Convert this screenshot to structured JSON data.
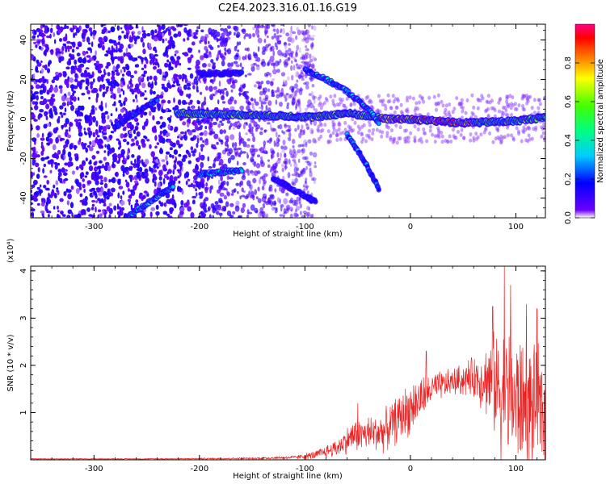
{
  "title": "C2E4.2023.316.01.16.G19",
  "chart_data": [
    {
      "type": "heatmap",
      "xlabel": "Height of straight line (km)",
      "ylabel": "Frequency (Hz)",
      "xlim": [
        -360,
        128
      ],
      "ylim": [
        -50,
        48
      ],
      "xticks": [
        -300,
        -200,
        -100,
        0,
        100
      ],
      "xtick_labels": [
        "-300",
        "-200",
        "-100",
        "0",
        "100"
      ],
      "yticks": [
        -40,
        -20,
        0,
        20,
        40
      ],
      "ytick_labels": [
        "-40",
        "-20",
        "0",
        "20",
        "40"
      ],
      "colorbar": {
        "label": "Normalized spectral amplitude",
        "range": [
          0,
          1
        ],
        "ticks": [
          0.0,
          0.2,
          0.4,
          0.6,
          0.8
        ],
        "tick_labels": [
          "0.0",
          "0.2",
          "0.4",
          "0.6",
          "0.8"
        ],
        "colors": [
          "#ffffff",
          "#6a00ff",
          "#0000ff",
          "#00ffff",
          "#00ff00",
          "#ffff00",
          "#ff8000",
          "#ff0000",
          "#ff0080"
        ]
      },
      "features": [
        {
          "description_of": "main ridge",
          "x": [
            -222,
            -150,
            -90,
            -60,
            -20,
            0,
            50,
            100,
            128
          ],
          "y": [
            3,
            2,
            1,
            3,
            0,
            0,
            -2,
            -1,
            1
          ],
          "amplitude": 0.55
        },
        {
          "description_of": "branch",
          "x": [
            -100,
            -80,
            -60,
            -40,
            -30
          ],
          "y": [
            25,
            20,
            14,
            5,
            -2
          ],
          "amplitude": 0.35
        },
        {
          "description_of": "branch",
          "x": [
            -60,
            -45,
            -30
          ],
          "y": [
            -8,
            -20,
            -35
          ],
          "amplitude": 0.3
        },
        {
          "description_of": "branch",
          "x": [
            -200,
            -160
          ],
          "y": [
            -28,
            -26
          ],
          "amplitude": 0.35
        },
        {
          "description_of": "branch",
          "x": [
            -200,
            -160
          ],
          "y": [
            23,
            23
          ],
          "amplitude": 0.2
        },
        {
          "description_of": "branch",
          "x": [
            -130,
            -90
          ],
          "y": [
            -30,
            -42
          ],
          "amplitude": 0.2
        },
        {
          "description_of": "branch",
          "x": [
            -280,
            -240
          ],
          "y": [
            -4,
            10
          ],
          "amplitude": 0.25
        },
        {
          "description_of": "branch",
          "x": [
            -270,
            -225
          ],
          "y": [
            -50,
            -34
          ],
          "amplitude": 0.35
        }
      ],
      "noise_region_x": [
        -360,
        -90
      ]
    },
    {
      "type": "line",
      "xlabel": "Height of straight line (km)",
      "ylabel": "SNR (10 * v/v)",
      "y_multiplier": "(x10⁴)",
      "xlim": [
        -360,
        128
      ],
      "ylim": [
        0,
        4.1
      ],
      "xticks": [
        -300,
        -200,
        -100,
        0,
        100
      ],
      "xtick_labels": [
        "-300",
        "-200",
        "-100",
        "0",
        "100"
      ],
      "yticks": [
        1,
        2,
        3,
        4
      ],
      "ytick_labels": [
        "1",
        "2",
        "3",
        "4"
      ],
      "color": "#ee2222",
      "envelope": {
        "x": [
          -360,
          -250,
          -150,
          -110,
          -90,
          -70,
          -55,
          -40,
          -25,
          -10,
          0,
          10,
          20,
          40,
          60,
          75,
          85,
          95,
          105,
          115,
          128
        ],
        "mean": [
          0.02,
          0.02,
          0.03,
          0.05,
          0.1,
          0.25,
          0.5,
          0.55,
          0.6,
          0.9,
          1.1,
          1.3,
          1.5,
          1.65,
          1.75,
          1.7,
          1.5,
          1.3,
          1.2,
          1.1,
          1.0
        ],
        "spread": [
          0.01,
          0.01,
          0.02,
          0.04,
          0.1,
          0.2,
          0.35,
          0.4,
          0.45,
          0.55,
          0.6,
          0.5,
          0.35,
          0.3,
          0.45,
          0.9,
          1.4,
          1.6,
          1.5,
          1.3,
          1.4
        ],
        "peaks": [
          {
            "x": 89,
            "y": 4.1
          },
          {
            "x": 95,
            "y": 3.7
          },
          {
            "x": 78,
            "y": 3.25
          },
          {
            "x": 110,
            "y": 3.3
          },
          {
            "x": 120,
            "y": 3.2
          },
          {
            "x": 15,
            "y": 2.3
          },
          {
            "x": -50,
            "y": 1.2
          }
        ]
      }
    }
  ]
}
